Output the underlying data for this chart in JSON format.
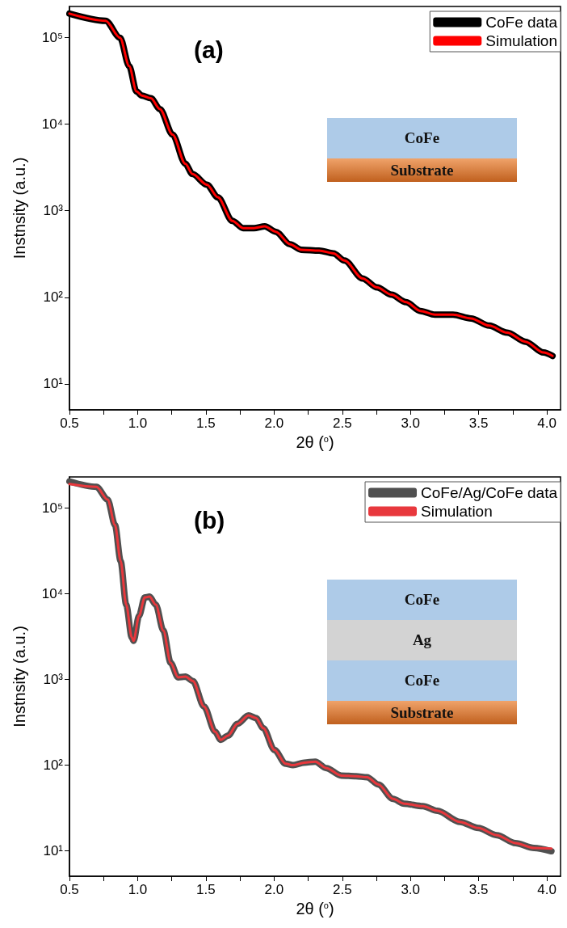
{
  "chart_data": [
    {
      "type": "line",
      "xlabel": "2θ ($^{o}$)",
      "ylabel": "Instnsity (a.u.)",
      "log": "y",
      "legend": "top right",
      "marker": "none",
      "grid": false,
      "xlim": [
        0.5,
        4.1
      ],
      "xticks": [
        0.5,
        {
          "value": 0.75,
          "label": null
        },
        {
          "value": 1,
          "label": "1.0"
        },
        {
          "value": 1.25,
          "label": null
        },
        1.5,
        {
          "value": 1.75,
          "label": null
        },
        {
          "value": 2,
          "label": "2.0"
        },
        {
          "value": 2.25,
          "label": null
        },
        2.5,
        {
          "value": 2.75,
          "label": null
        },
        {
          "value": 3,
          "label": "3.0"
        },
        {
          "value": 3.25,
          "label": null
        },
        3.5,
        {
          "value": 3.75,
          "label": null
        },
        {
          "value": 4,
          "label": "4.0"
        }
      ],
      "ylim": [
        5,
        230000
      ],
      "yticks": [
        {
          "value": 10,
          "label": "10¹"
        },
        {
          "value": 100,
          "label": "10²"
        },
        {
          "value": 1000,
          "label": "10³"
        },
        {
          "value": 10000,
          "label": "10⁴"
        },
        {
          "value": 100000,
          "label": "10⁵"
        }
      ],
      "annotations": [
        "(a)",
        "CoFe",
        "Substrate"
      ],
      "x": [
        0.5,
        0.765,
        0.871,
        0.938,
        0.991,
        1.03,
        1.097,
        1.163,
        1.256,
        1.349,
        1.402,
        1.508,
        1.588,
        1.694,
        1.773,
        1.853,
        1.932,
        2.012,
        2.118,
        2.198,
        2.33,
        2.436,
        2.516,
        2.649,
        2.755,
        2.861,
        2.967,
        3.073,
        3.179,
        3.312,
        3.444,
        3.577,
        3.709,
        3.842,
        3.975,
        4.041
      ],
      "series": [
        {
          "name": "CoFe data",
          "color": "#000000",
          "values": [
            190000,
            157000,
            100000,
            47000,
            24000,
            21500,
            20000,
            15000,
            7600,
            3500,
            2660,
            2000,
            1430,
            764,
            631,
            631,
            661,
            573,
            410,
            355,
            347,
            322,
            266,
            165,
            130,
            107,
            88,
            69.5,
            63,
            63,
            57,
            47,
            39,
            30.7,
            23,
            21
          ]
        },
        {
          "name": "Simulation",
          "color": "#ff0000",
          "values": [
            190000,
            157000,
            100000,
            47000,
            24000,
            21500,
            20000,
            15000,
            7600,
            3500,
            2660,
            2000,
            1430,
            764,
            631,
            631,
            661,
            573,
            410,
            355,
            347,
            322,
            266,
            165,
            130,
            107,
            88,
            69.5,
            63,
            63,
            57,
            47,
            39,
            30.7,
            23,
            21
          ]
        }
      ]
    },
    {
      "type": "line",
      "xlabel": "2θ ($^{o}$)",
      "ylabel": "Instnsity (a.u.)",
      "log": "y",
      "legend": "top right",
      "marker": "none",
      "grid": false,
      "xlim": [
        0.5,
        4.1
      ],
      "xticks": [
        0.5,
        {
          "value": 0.75,
          "label": null
        },
        {
          "value": 1,
          "label": "1.0"
        },
        {
          "value": 1.25,
          "label": null
        },
        1.5,
        {
          "value": 1.75,
          "label": null
        },
        {
          "value": 2,
          "label": "2.0"
        },
        {
          "value": 2.25,
          "label": null
        },
        2.5,
        {
          "value": 2.75,
          "label": null
        },
        {
          "value": 3,
          "label": "3.0"
        },
        {
          "value": 3.25,
          "label": null
        },
        3.5,
        {
          "value": 3.75,
          "label": null
        },
        {
          "value": 4,
          "label": "4.0"
        }
      ],
      "ylim": [
        5,
        230000
      ],
      "yticks": [
        {
          "value": 10,
          "label": "10¹"
        },
        {
          "value": 100,
          "label": "10²"
        },
        {
          "value": 1000,
          "label": "10³"
        },
        {
          "value": 10000,
          "label": "10⁴"
        },
        {
          "value": 100000,
          "label": "10⁵"
        }
      ],
      "annotations": [
        "(b)",
        "CoFe",
        "Ag",
        "CoFe",
        "Substrate"
      ],
      "x": [
        0.5,
        0.698,
        0.78,
        0.834,
        0.875,
        0.916,
        0.957,
        0.97,
        1.01,
        1.052,
        1.087,
        1.133,
        1.188,
        1.242,
        1.296,
        1.35,
        1.405,
        1.486,
        1.568,
        1.609,
        1.663,
        1.731,
        1.813,
        1.867,
        1.921,
        2.003,
        2.084,
        2.139,
        2.22,
        2.302,
        2.383,
        2.492,
        2.6,
        2.682,
        2.764,
        2.872,
        2.954,
        3.09,
        3.198,
        3.361,
        3.497,
        3.633,
        3.769,
        3.905,
        4.033
      ],
      "series": [
        {
          "name": "CoFe/Ag/CoFe data",
          "color": "#505050",
          "values": [
            204000,
            176000,
            125000,
            63000,
            24000,
            7400,
            3070,
            2800,
            5500,
            9000,
            9200,
            7400,
            3700,
            1550,
            1050,
            1070,
            953,
            481,
            243,
            196,
            220,
            301,
            377,
            352,
            268,
            149,
            103,
            99,
            106,
            109,
            91.6,
            75,
            73.5,
            71.8,
            59,
            40,
            35.2,
            32.9,
            29,
            21.6,
            18.3,
            15.1,
            12.2,
            10.7,
            9.8
          ]
        },
        {
          "name": "Simulation",
          "color": "#e8383d",
          "values": [
            190000,
            176000,
            125000,
            63000,
            24000,
            7400,
            3070,
            2800,
            5500,
            9000,
            9200,
            7400,
            3700,
            1550,
            1050,
            1070,
            953,
            481,
            243,
            196,
            220,
            301,
            377,
            352,
            268,
            149,
            103,
            99,
            106,
            109,
            91.6,
            75,
            73.5,
            71.8,
            59,
            40,
            35.2,
            32.9,
            29,
            21.6,
            18.3,
            15.1,
            12.2,
            10.7,
            10.5
          ]
        }
      ]
    }
  ]
}
